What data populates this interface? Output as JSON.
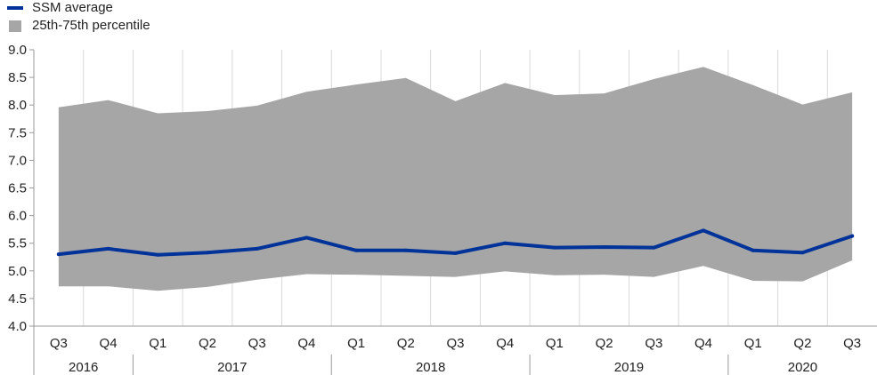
{
  "legend": {
    "items": [
      {
        "label": "SSM average",
        "color": "#003399",
        "kind": "line"
      },
      {
        "label": "25th-75th percentile",
        "color": "#a6a6a6",
        "kind": "area"
      }
    ]
  },
  "chart_data": {
    "type": "area",
    "title": "",
    "xlabel": "",
    "ylabel": "",
    "quarters": [
      "Q3",
      "Q4",
      "Q1",
      "Q2",
      "Q3",
      "Q4",
      "Q1",
      "Q2",
      "Q3",
      "Q4",
      "Q1",
      "Q2",
      "Q3",
      "Q4",
      "Q1",
      "Q2",
      "Q3"
    ],
    "year_groups": [
      {
        "label": "2016",
        "count": 2
      },
      {
        "label": "2017",
        "count": 4
      },
      {
        "label": "2018",
        "count": 4
      },
      {
        "label": "2019",
        "count": 4
      },
      {
        "label": "2020",
        "count": 3
      }
    ],
    "series": [
      {
        "name": "SSM average",
        "type": "line",
        "color": "#003399",
        "values": [
          5.3,
          5.4,
          5.29,
          5.33,
          5.4,
          5.6,
          5.37,
          5.37,
          5.32,
          5.5,
          5.42,
          5.43,
          5.42,
          5.73,
          5.37,
          5.33,
          5.63
        ]
      },
      {
        "name": "25th-75th percentile",
        "type": "band",
        "color": "#a6a6a6",
        "lower": [
          4.72,
          4.72,
          4.64,
          4.71,
          4.84,
          4.94,
          4.93,
          4.91,
          4.89,
          4.99,
          4.92,
          4.93,
          4.89,
          5.09,
          4.82,
          4.81,
          5.19
        ],
        "upper": [
          7.96,
          8.09,
          7.85,
          7.89,
          7.99,
          8.24,
          8.37,
          8.49,
          8.07,
          8.4,
          8.18,
          8.21,
          8.47,
          8.69,
          8.36,
          8.01,
          8.23
        ]
      }
    ],
    "y_ticks": [
      "9.0",
      "8.5",
      "8.0",
      "7.5",
      "7.0",
      "6.5",
      "6.0",
      "5.5",
      "5.0",
      "4.5",
      "4.0"
    ],
    "ylim": [
      4.0,
      9.0
    ],
    "grid": "vertical"
  }
}
